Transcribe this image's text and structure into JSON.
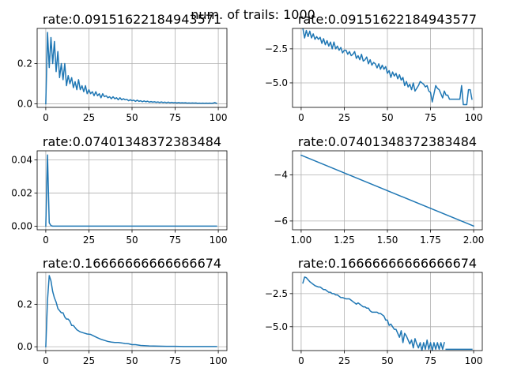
{
  "figure": {
    "suptitle": "num. of trails: 1000",
    "colors": {
      "line": "#1f77b4",
      "grid": "#b0b0b0"
    }
  },
  "chart_data": [
    {
      "type": "line",
      "title": "rate:0.09151622184943571",
      "xlabel": "",
      "ylabel": "",
      "xlim": [
        -5,
        105
      ],
      "ylim": [
        -0.018,
        0.375
      ],
      "grid": true,
      "xticks": [
        0,
        25,
        50,
        75,
        100
      ],
      "xtick_labels": [
        "0",
        "25",
        "50",
        "75",
        "100"
      ],
      "yticks": [
        0.0,
        0.2
      ],
      "ytick_labels": [
        "0.0",
        "0.2"
      ],
      "series": [
        {
          "x": [
            0,
            1,
            2,
            3,
            4,
            5,
            6,
            7,
            8,
            9,
            10,
            11,
            12,
            13,
            14,
            15,
            16,
            17,
            18,
            19,
            20,
            21,
            22,
            23,
            24,
            25,
            26,
            27,
            28,
            29,
            30,
            31,
            32,
            33,
            34,
            35,
            36,
            37,
            38,
            39,
            40,
            41,
            42,
            43,
            44,
            45,
            46,
            47,
            48,
            49,
            50,
            51,
            52,
            53,
            54,
            55,
            56,
            57,
            58,
            59,
            60,
            61,
            62,
            63,
            64,
            65,
            66,
            67,
            68,
            69,
            70,
            71,
            72,
            73,
            74,
            75,
            76,
            77,
            78,
            79,
            80,
            81,
            82,
            83,
            84,
            85,
            86,
            87,
            88,
            89,
            90,
            91,
            92,
            93,
            94,
            95,
            96,
            97,
            98,
            99
          ],
          "y": [
            0,
            0.355,
            0.18,
            0.33,
            0.2,
            0.31,
            0.16,
            0.26,
            0.13,
            0.2,
            0.12,
            0.2,
            0.09,
            0.14,
            0.1,
            0.13,
            0.08,
            0.11,
            0.07,
            0.12,
            0.07,
            0.09,
            0.06,
            0.09,
            0.05,
            0.07,
            0.05,
            0.06,
            0.04,
            0.06,
            0.04,
            0.05,
            0.03,
            0.05,
            0.035,
            0.04,
            0.03,
            0.035,
            0.025,
            0.035,
            0.025,
            0.03,
            0.02,
            0.03,
            0.02,
            0.025,
            0.02,
            0.022,
            0.015,
            0.02,
            0.015,
            0.018,
            0.012,
            0.018,
            0.012,
            0.015,
            0.01,
            0.014,
            0.01,
            0.013,
            0.008,
            0.011,
            0.008,
            0.01,
            0.007,
            0.009,
            0.006,
            0.009,
            0.006,
            0.008,
            0.005,
            0.008,
            0.005,
            0.007,
            0.005,
            0.006,
            0.004,
            0.006,
            0.004,
            0.005,
            0.004,
            0.005,
            0.003,
            0.004,
            0.003,
            0.004,
            0.003,
            0.004,
            0.002,
            0.003,
            0.002,
            0.003,
            0.002,
            0.003,
            0.002,
            0.003,
            0.002,
            0.003,
            0.006,
            0.002
          ]
        }
      ]
    },
    {
      "type": "line",
      "title": "rate:0.09151622184943577",
      "xlabel": "",
      "ylabel": "",
      "xlim": [
        -5,
        105
      ],
      "ylim": [
        -6.8,
        -1.0
      ],
      "grid": true,
      "xticks": [
        0,
        25,
        50,
        75,
        100
      ],
      "xtick_labels": [
        "0",
        "25",
        "50",
        "75",
        "100"
      ],
      "yticks": [
        -2.5,
        -5.0
      ],
      "ytick_labels": [
        "−2.5",
        "−5.0"
      ],
      "series": [
        {
          "x": [
            1,
            2,
            3,
            4,
            5,
            6,
            7,
            8,
            9,
            10,
            11,
            12,
            13,
            14,
            15,
            16,
            17,
            18,
            19,
            20,
            21,
            22,
            23,
            24,
            25,
            26,
            27,
            28,
            29,
            30,
            31,
            32,
            33,
            34,
            35,
            36,
            37,
            38,
            39,
            40,
            41,
            42,
            43,
            44,
            45,
            46,
            47,
            48,
            49,
            50,
            51,
            52,
            53,
            54,
            55,
            56,
            57,
            58,
            59,
            60,
            61,
            62,
            63,
            64,
            65,
            66,
            67,
            68,
            69,
            70,
            71,
            72,
            73,
            74,
            75,
            76,
            77,
            78,
            79,
            80,
            81,
            82,
            83,
            84,
            85,
            86,
            87,
            88,
            89,
            90,
            91,
            92,
            93,
            94,
            95,
            96,
            97,
            98,
            99
          ],
          "y": [
            -1.0,
            -1.7,
            -1.15,
            -1.6,
            -1.2,
            -1.7,
            -1.4,
            -1.8,
            -1.6,
            -1.8,
            -1.65,
            -2.1,
            -1.75,
            -2.2,
            -1.9,
            -2.3,
            -2.0,
            -2.5,
            -2.0,
            -2.5,
            -2.3,
            -2.6,
            -2.4,
            -2.8,
            -2.6,
            -2.6,
            -2.9,
            -2.7,
            -3.0,
            -2.9,
            -2.7,
            -3.2,
            -3.0,
            -3.3,
            -2.9,
            -3.4,
            -3.3,
            -3.1,
            -3.6,
            -3.3,
            -3.7,
            -3.5,
            -3.6,
            -3.9,
            -3.6,
            -4.0,
            -3.7,
            -4.0,
            -3.8,
            -4.3,
            -4.1,
            -4.6,
            -4.2,
            -4.5,
            -4.3,
            -4.7,
            -4.4,
            -4.8,
            -4.6,
            -5.2,
            -4.9,
            -5.3,
            -5.1,
            -5.5,
            -5.0,
            -5.6,
            -5.4,
            -5.2,
            -4.9,
            -5.0,
            -5.1,
            -5.3,
            -5.2,
            -5.6,
            -5.7,
            -6.4,
            -5.8,
            -5.2,
            -5.4,
            -5.5,
            -5.8,
            -6.1,
            -5.6,
            -5.9,
            -5.9,
            -6.2,
            -6.2,
            -6.2,
            -6.2,
            -6.2,
            -6.2,
            -6.2,
            -5.2,
            -6.6,
            -6.6,
            -6.6,
            -5.5,
            -5.5,
            -6.2
          ]
        }
      ]
    },
    {
      "type": "line",
      "title": "rate:0.07401348372383484",
      "xlabel": "",
      "ylabel": "",
      "xlim": [
        -5,
        105
      ],
      "ylim": [
        -0.0022,
        0.0455
      ],
      "grid": true,
      "xticks": [
        0,
        25,
        50,
        75,
        100
      ],
      "xtick_labels": [
        "0",
        "25",
        "50",
        "75",
        "100"
      ],
      "yticks": [
        0.0,
        0.02,
        0.04
      ],
      "ytick_labels": [
        "0.00",
        "0.02",
        "0.04"
      ],
      "series": [
        {
          "x": [
            0,
            1,
            2,
            3,
            4,
            5,
            10,
            20,
            30,
            40,
            50,
            60,
            70,
            80,
            90,
            99
          ],
          "y": [
            0,
            0.043,
            0.002,
            0.0003,
            0,
            0,
            0,
            0,
            0,
            0,
            0,
            0,
            0,
            0,
            0,
            0
          ]
        }
      ]
    },
    {
      "type": "line",
      "title": "rate:0.07401348372383484",
      "xlabel": "",
      "ylabel": "",
      "xlim": [
        0.95,
        2.05
      ],
      "ylim": [
        -6.38,
        -2.96
      ],
      "grid": true,
      "xticks": [
        1.0,
        1.25,
        1.5,
        1.75,
        2.0
      ],
      "xtick_labels": [
        "1.00",
        "1.25",
        "1.50",
        "1.75",
        "2.00"
      ],
      "yticks": [
        -4,
        -6
      ],
      "ytick_labels": [
        "−4",
        "−6"
      ],
      "series": [
        {
          "x": [
            1.0,
            2.0
          ],
          "y": [
            -3.15,
            -6.22
          ]
        }
      ]
    },
    {
      "type": "line",
      "title": "rate:0.16666666666666674",
      "xlabel": "",
      "ylabel": "",
      "xlim": [
        -5,
        105
      ],
      "ylim": [
        -0.018,
        0.35
      ],
      "grid": true,
      "xticks": [
        0,
        25,
        50,
        75,
        100
      ],
      "xtick_labels": [
        "0",
        "25",
        "50",
        "75",
        "100"
      ],
      "yticks": [
        0.0,
        0.2
      ],
      "ytick_labels": [
        "0.0",
        "0.2"
      ],
      "series": [
        {
          "x": [
            0,
            1,
            2,
            3,
            4,
            5,
            6,
            7,
            8,
            9,
            10,
            11,
            12,
            13,
            14,
            15,
            16,
            17,
            18,
            20,
            22,
            24,
            26,
            28,
            30,
            32,
            34,
            36,
            38,
            40,
            42,
            44,
            46,
            48,
            50,
            52,
            55,
            60,
            65,
            70,
            75,
            80,
            85,
            90,
            95,
            99
          ],
          "y": [
            0,
            0.22,
            0.335,
            0.31,
            0.26,
            0.23,
            0.21,
            0.18,
            0.17,
            0.16,
            0.16,
            0.14,
            0.13,
            0.13,
            0.12,
            0.1,
            0.1,
            0.09,
            0.08,
            0.07,
            0.065,
            0.06,
            0.058,
            0.05,
            0.042,
            0.035,
            0.03,
            0.025,
            0.022,
            0.02,
            0.02,
            0.018,
            0.015,
            0.014,
            0.01,
            0.01,
            0.006,
            0.004,
            0.003,
            0.002,
            0.002,
            0.001,
            0.001,
            0.001,
            0.001,
            0.001
          ]
        }
      ]
    },
    {
      "type": "line",
      "title": "rate:0.16666666666666674",
      "xlabel": "",
      "ylabel": "",
      "xlim": [
        -5,
        105
      ],
      "ylim": [
        -6.8,
        -0.9
      ],
      "grid": true,
      "xticks": [
        0,
        25,
        50,
        75,
        100
      ],
      "xtick_labels": [
        "0",
        "25",
        "50",
        "75",
        "100"
      ],
      "yticks": [
        -2.5,
        -5.0
      ],
      "ytick_labels": [
        "−2.5",
        "−5.0"
      ],
      "series": [
        {
          "x": [
            1,
            2,
            3,
            4,
            5,
            6,
            7,
            8,
            9,
            10,
            11,
            12,
            13,
            14,
            15,
            16,
            17,
            18,
            19,
            20,
            21,
            22,
            23,
            24,
            25,
            26,
            27,
            28,
            29,
            30,
            31,
            32,
            33,
            34,
            35,
            36,
            37,
            38,
            39,
            40,
            41,
            42,
            43,
            44,
            45,
            46,
            47,
            48,
            49,
            50,
            51,
            52,
            53,
            54,
            55,
            56,
            57,
            58,
            59,
            60,
            61,
            62,
            63,
            64,
            65,
            66,
            67,
            68,
            69,
            70,
            71,
            72,
            73,
            74,
            75,
            76,
            77,
            78,
            79,
            80,
            81,
            82,
            83
          ],
          "y": [
            -1.7,
            -1.25,
            -1.3,
            -1.45,
            -1.6,
            -1.7,
            -1.8,
            -1.9,
            -1.95,
            -2.0,
            -2.0,
            -2.1,
            -2.2,
            -2.2,
            -2.3,
            -2.4,
            -2.4,
            -2.5,
            -2.5,
            -2.6,
            -2.6,
            -2.7,
            -2.8,
            -2.8,
            -2.85,
            -2.9,
            -2.9,
            -2.9,
            -3.0,
            -3.1,
            -3.2,
            -3.3,
            -3.2,
            -3.3,
            -3.4,
            -3.5,
            -3.5,
            -3.6,
            -3.6,
            -3.8,
            -3.9,
            -3.9,
            -3.9,
            -3.9,
            -4.0,
            -4.0,
            -4.1,
            -4.2,
            -4.5,
            -4.5,
            -4.9,
            -4.8,
            -5.0,
            -5.2,
            -5.2,
            -5.5,
            -5.8,
            -5.3,
            -6.2,
            -5.5,
            -5.7,
            -6.0,
            -6.3,
            -6.0,
            -6.6,
            -5.9,
            -6.3,
            -6.6,
            -6.2,
            -6.8,
            -6.2,
            -6.7,
            -6.0,
            -6.7,
            -6.2,
            -6.8,
            -6.2,
            -6.7,
            -6.2,
            -6.7,
            -6.2,
            -6.7,
            -6.2
          ]
        },
        {
          "x": [
            84,
            99
          ],
          "y": [
            -6.7,
            -6.7
          ]
        }
      ]
    }
  ]
}
